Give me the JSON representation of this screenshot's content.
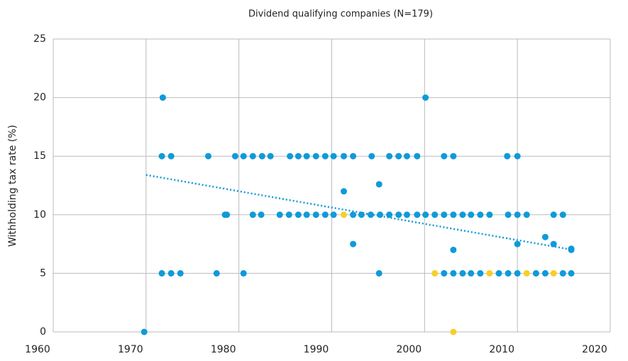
{
  "chart_data": {
    "type": "scatter",
    "title": "Dividend qualifying companies (N=179)",
    "y_label": "Withholding tax rate (%)",
    "xlim": [
      1960,
      2020
    ],
    "xticks": [
      1960,
      1970,
      1980,
      1990,
      2000,
      2010,
      2020
    ],
    "ylim": [
      0,
      25
    ],
    "yticks": [
      0,
      5,
      10,
      15,
      20,
      25
    ],
    "grid": true,
    "series": [
      {
        "color": "#0f9ad9",
        "x": [
          1971.8,
          2000.1,
          1971.7,
          1972.7,
          1976.7,
          1979.6,
          1980.5,
          1981.5,
          1982.5,
          1983.4,
          1985.5,
          1986.4,
          1987.3,
          1988.3,
          1989.3,
          1990.2,
          1991.3,
          1992.3,
          1994.3,
          1996.2,
          1997.2,
          1998.1,
          1999.2,
          2002.1,
          2003.1,
          2008.9,
          2010,
          1991.3,
          1995.1,
          1978.5,
          1978.7,
          1981.5,
          1982.4,
          1984.4,
          1985.4,
          1986.4,
          1987.3,
          1988.3,
          1989.3,
          1990.2,
          1992.3,
          1993.2,
          1994.2,
          1995.2,
          1996.2,
          1997.2,
          1998.1,
          1999.2,
          2000.1,
          2001.1,
          2002.1,
          2003.1,
          2004.1,
          2005,
          2006,
          2007,
          2009,
          2010,
          2011,
          2013.9,
          2014.9,
          1992.3,
          2010,
          2013,
          2013.9,
          2003.1,
          2015.8,
          2015.8,
          1971.7,
          1972.7,
          1973.7,
          1977.6,
          1980.5,
          1995.1,
          2002.1,
          2003.1,
          2004.1,
          2005,
          2006,
          2008,
          2009,
          2010,
          2012,
          2013,
          2014.9,
          2015.8,
          1969.8
        ],
        "values": [
          20,
          20,
          15,
          15,
          15,
          15,
          15,
          15,
          15,
          15,
          15,
          15,
          15,
          15,
          15,
          15,
          15,
          15,
          15,
          15,
          15,
          15,
          15,
          15,
          15,
          15,
          15,
          12,
          12.6,
          10,
          10,
          10,
          10,
          10,
          10,
          10,
          10,
          10,
          10,
          10,
          10,
          10,
          10,
          10,
          10,
          10,
          10,
          10,
          10,
          10,
          10,
          10,
          10,
          10,
          10,
          10,
          10,
          10,
          10,
          10,
          10,
          7.5,
          7.5,
          8.1,
          7.5,
          7,
          7,
          7.1,
          5,
          5,
          5,
          5,
          5,
          5,
          5,
          5,
          5,
          5,
          5,
          5,
          5,
          5,
          5,
          5,
          5,
          5,
          0
        ]
      },
      {
        "color": "#f7cf2a",
        "x": [
          1991.3,
          2001.1,
          2007,
          2011,
          2013.9,
          2003.1
        ],
        "values": [
          10,
          5,
          5,
          5,
          5,
          0
        ]
      }
    ],
    "trendline": {
      "color": "#0f9ad9",
      "x": [
        1970,
        2016
      ],
      "values": [
        13.4,
        7.0
      ]
    }
  }
}
